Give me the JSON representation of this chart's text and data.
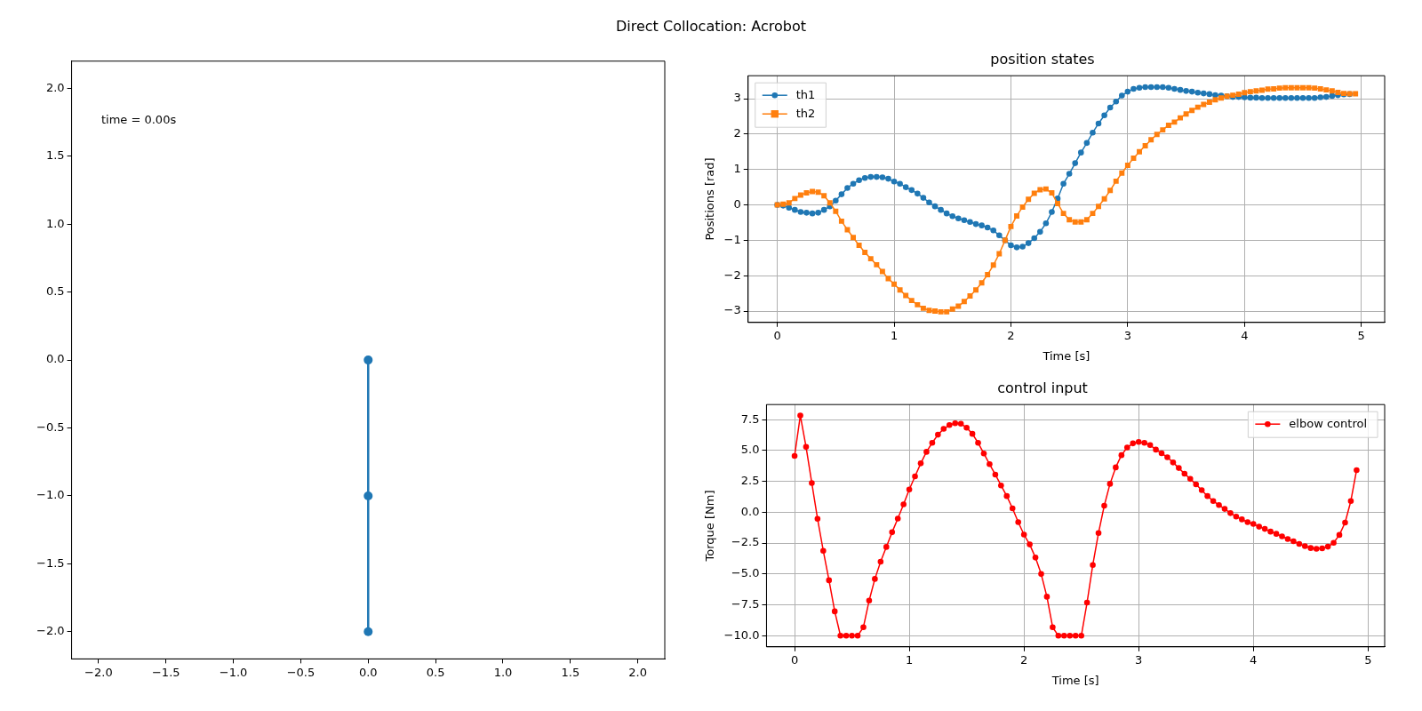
{
  "chart_data": [
    {
      "type": "line",
      "title": "Direct Collocation: Acrobot",
      "annotations": [
        "time = 0.00s"
      ],
      "x": [
        0,
        0,
        0
      ],
      "values": [
        0,
        -1,
        -2
      ],
      "color": "#1f77b4",
      "marker": "circle",
      "xlim": [
        -2.2,
        2.2
      ],
      "ylim": [
        -2.2,
        2.2
      ],
      "xticks": [
        {
          "value": -2,
          "label": "−2.0"
        },
        {
          "value": -1.5,
          "label": "−1.5"
        },
        {
          "value": -1,
          "label": "−1.0"
        },
        {
          "value": -0.5,
          "label": "−0.5"
        },
        {
          "value": 0,
          "label": "0.0"
        },
        {
          "value": 0.5,
          "label": "0.5"
        },
        {
          "value": 1,
          "label": "1.0"
        },
        {
          "value": 1.5,
          "label": "1.5"
        },
        {
          "value": 2,
          "label": "2.0"
        }
      ],
      "yticks": [
        {
          "value": -2,
          "label": "−2.0"
        },
        {
          "value": -1.5,
          "label": "−1.5"
        },
        {
          "value": -1,
          "label": "−1.0"
        },
        {
          "value": -0.5,
          "label": "−0.5"
        },
        {
          "value": 0,
          "label": "0.0"
        },
        {
          "value": 0.5,
          "label": "0.5"
        },
        {
          "value": 1,
          "label": "1.0"
        },
        {
          "value": 1.5,
          "label": "1.5"
        },
        {
          "value": 2,
          "label": "2.0"
        }
      ]
    },
    {
      "type": "line",
      "title": "position states",
      "xlabel": "Time [s]",
      "ylabel": "Positions [rad]",
      "grid": true,
      "legend": "top left",
      "x": [
        0,
        0.05,
        0.1,
        0.15,
        0.2,
        0.25,
        0.3,
        0.35,
        0.4,
        0.45,
        0.5,
        0.55,
        0.6,
        0.65,
        0.7,
        0.75,
        0.8,
        0.85,
        0.9,
        0.95,
        1,
        1.05,
        1.1,
        1.15,
        1.2,
        1.25,
        1.3,
        1.35,
        1.4,
        1.45,
        1.5,
        1.55,
        1.6,
        1.65,
        1.7,
        1.75,
        1.8,
        1.85,
        1.9,
        1.95,
        2,
        2.05,
        2.1,
        2.15,
        2.2,
        2.25,
        2.3,
        2.35,
        2.4,
        2.45,
        2.5,
        2.55,
        2.6,
        2.65,
        2.7,
        2.75,
        2.8,
        2.85,
        2.9,
        2.95,
        3,
        3.05,
        3.1,
        3.15,
        3.2,
        3.25,
        3.3,
        3.35,
        3.4,
        3.45,
        3.5,
        3.55,
        3.6,
        3.65,
        3.7,
        3.75,
        3.8,
        3.85,
        3.9,
        3.95,
        4,
        4.05,
        4.1,
        4.15,
        4.2,
        4.25,
        4.3,
        4.35,
        4.4,
        4.45,
        4.5,
        4.55,
        4.6,
        4.65,
        4.7,
        4.75,
        4.8,
        4.85,
        4.9,
        4.95
      ],
      "series": [
        {
          "name": "th1",
          "color": "#1f77b4",
          "marker": "circle",
          "values": [
            0,
            -0.02,
            -0.08,
            -0.14,
            -0.2,
            -0.22,
            -0.24,
            -0.22,
            -0.14,
            -0.04,
            0.12,
            0.3,
            0.48,
            0.6,
            0.7,
            0.76,
            0.79,
            0.79,
            0.78,
            0.74,
            0.66,
            0.6,
            0.5,
            0.42,
            0.32,
            0.2,
            0.07,
            -0.04,
            -0.14,
            -0.24,
            -0.32,
            -0.38,
            -0.43,
            -0.48,
            -0.54,
            -0.58,
            -0.64,
            -0.72,
            -0.86,
            -1.0,
            -1.14,
            -1.2,
            -1.18,
            -1.08,
            -0.94,
            -0.76,
            -0.52,
            -0.2,
            0.18,
            0.6,
            0.88,
            1.18,
            1.48,
            1.75,
            2.04,
            2.3,
            2.53,
            2.75,
            2.92,
            3.09,
            3.2,
            3.28,
            3.31,
            3.33,
            3.33,
            3.33,
            3.33,
            3.31,
            3.28,
            3.25,
            3.22,
            3.2,
            3.17,
            3.15,
            3.13,
            3.1,
            3.09,
            3.07,
            3.05,
            3.05,
            3.04,
            3.03,
            3.03,
            3.02,
            3.02,
            3.02,
            3.02,
            3.02,
            3.02,
            3.02,
            3.02,
            3.02,
            3.02,
            3.04,
            3.05,
            3.08,
            3.1,
            3.12,
            3.13,
            null
          ]
        },
        {
          "name": "th2",
          "color": "#ff7f0e",
          "marker": "square",
          "values": [
            0,
            0.02,
            0.06,
            0.18,
            0.28,
            0.34,
            0.38,
            0.36,
            0.26,
            0.06,
            -0.18,
            -0.46,
            -0.7,
            -0.92,
            -1.14,
            -1.34,
            -1.52,
            -1.69,
            -1.88,
            -2.08,
            -2.24,
            -2.4,
            -2.56,
            -2.7,
            -2.82,
            -2.92,
            -2.98,
            -3.0,
            -3.02,
            -3.02,
            -2.94,
            -2.86,
            -2.73,
            -2.57,
            -2.4,
            -2.2,
            -1.97,
            -1.7,
            -1.38,
            -1.0,
            -0.61,
            -0.31,
            -0.06,
            0.16,
            0.33,
            0.43,
            0.45,
            0.34,
            0.04,
            -0.24,
            -0.42,
            -0.48,
            -0.48,
            -0.42,
            -0.24,
            -0.04,
            0.17,
            0.41,
            0.67,
            0.9,
            1.12,
            1.32,
            1.5,
            1.67,
            1.84,
            1.99,
            2.12,
            2.25,
            2.34,
            2.46,
            2.57,
            2.67,
            2.76,
            2.84,
            2.9,
            2.97,
            3.02,
            3.07,
            3.1,
            3.13,
            3.17,
            3.2,
            3.22,
            3.24,
            3.27,
            3.28,
            3.3,
            3.31,
            3.31,
            3.31,
            3.31,
            3.31,
            3.3,
            3.28,
            3.25,
            3.22,
            3.18,
            3.15,
            3.14,
            3.14
          ]
        }
      ],
      "xlim": [
        -0.25,
        5.2
      ],
      "ylim": [
        -3.32,
        3.65
      ],
      "xticks": [
        0,
        1,
        2,
        3,
        4,
        5
      ],
      "yticks": [
        {
          "value": -3,
          "label": "−3"
        },
        {
          "value": -2,
          "label": "−2"
        },
        {
          "value": -1,
          "label": "−1"
        },
        0,
        1,
        2,
        3
      ]
    },
    {
      "type": "line",
      "title": "control input",
      "xlabel": "Time [s]",
      "ylabel": "Torque [Nm]",
      "grid": true,
      "legend": "top right",
      "x": [
        0,
        0.05,
        0.1,
        0.15,
        0.2,
        0.25,
        0.3,
        0.35,
        0.4,
        0.45,
        0.5,
        0.55,
        0.6,
        0.65,
        0.7,
        0.75,
        0.8,
        0.85,
        0.9,
        0.95,
        1,
        1.05,
        1.1,
        1.15,
        1.2,
        1.25,
        1.3,
        1.35,
        1.4,
        1.45,
        1.5,
        1.55,
        1.6,
        1.65,
        1.7,
        1.75,
        1.8,
        1.85,
        1.9,
        1.95,
        2,
        2.05,
        2.1,
        2.15,
        2.2,
        2.25,
        2.3,
        2.35,
        2.4,
        2.45,
        2.5,
        2.55,
        2.6,
        2.65,
        2.7,
        2.75,
        2.8,
        2.85,
        2.9,
        2.95,
        3,
        3.05,
        3.1,
        3.15,
        3.2,
        3.25,
        3.3,
        3.35,
        3.4,
        3.45,
        3.5,
        3.55,
        3.6,
        3.65,
        3.7,
        3.75,
        3.8,
        3.85,
        3.9,
        3.95,
        4,
        4.05,
        4.1,
        4.15,
        4.2,
        4.25,
        4.3,
        4.35,
        4.4,
        4.45,
        4.5,
        4.55,
        4.6,
        4.65,
        4.7,
        4.75,
        4.8,
        4.85,
        4.9
      ],
      "series": [
        {
          "name": "elbow control",
          "color": "#ff0000",
          "marker": "circle",
          "values": [
            4.56,
            7.83,
            5.29,
            2.37,
            -0.53,
            -3.12,
            -5.51,
            -8.03,
            -10,
            -10,
            -10,
            -10,
            -9.31,
            -7.15,
            -5.4,
            -4.0,
            -2.81,
            -1.62,
            -0.51,
            0.64,
            1.84,
            2.9,
            3.96,
            4.89,
            5.62,
            6.28,
            6.75,
            7.06,
            7.21,
            7.17,
            6.84,
            6.35,
            5.62,
            4.76,
            3.89,
            3.05,
            2.17,
            1.31,
            0.31,
            -0.8,
            -1.81,
            -2.61,
            -3.67,
            -5.0,
            -6.84,
            -9.31,
            -10,
            -10,
            -10,
            -10,
            -10,
            -7.32,
            -4.27,
            -1.68,
            0.53,
            2.3,
            3.63,
            4.62,
            5.24,
            5.58,
            5.69,
            5.62,
            5.44,
            5.07,
            4.78,
            4.45,
            4.03,
            3.58,
            3.12,
            2.7,
            2.26,
            1.79,
            1.31,
            0.91,
            0.58,
            0.27,
            -0.07,
            -0.35,
            -0.58,
            -0.8,
            -0.95,
            -1.17,
            -1.35,
            -1.57,
            -1.75,
            -1.95,
            -2.17,
            -2.35,
            -2.57,
            -2.74,
            -2.9,
            -2.96,
            -2.92,
            -2.79,
            -2.48,
            -1.84,
            -0.84,
            0.91,
            3.41
          ]
        }
      ],
      "xlim": [
        -0.245,
        5.145
      ],
      "ylim": [
        -10.9,
        8.72
      ],
      "xticks": [
        0,
        1,
        2,
        3,
        4,
        5
      ],
      "yticks": [
        {
          "value": -10,
          "label": "−10.0"
        },
        {
          "value": -7.5,
          "label": "−7.5"
        },
        {
          "value": -5,
          "label": "−5.0"
        },
        {
          "value": -2.5,
          "label": "−2.5"
        },
        {
          "value": 0,
          "label": "0.0"
        },
        2.5,
        {
          "value": 5,
          "label": "5.0"
        },
        7.5
      ]
    }
  ]
}
